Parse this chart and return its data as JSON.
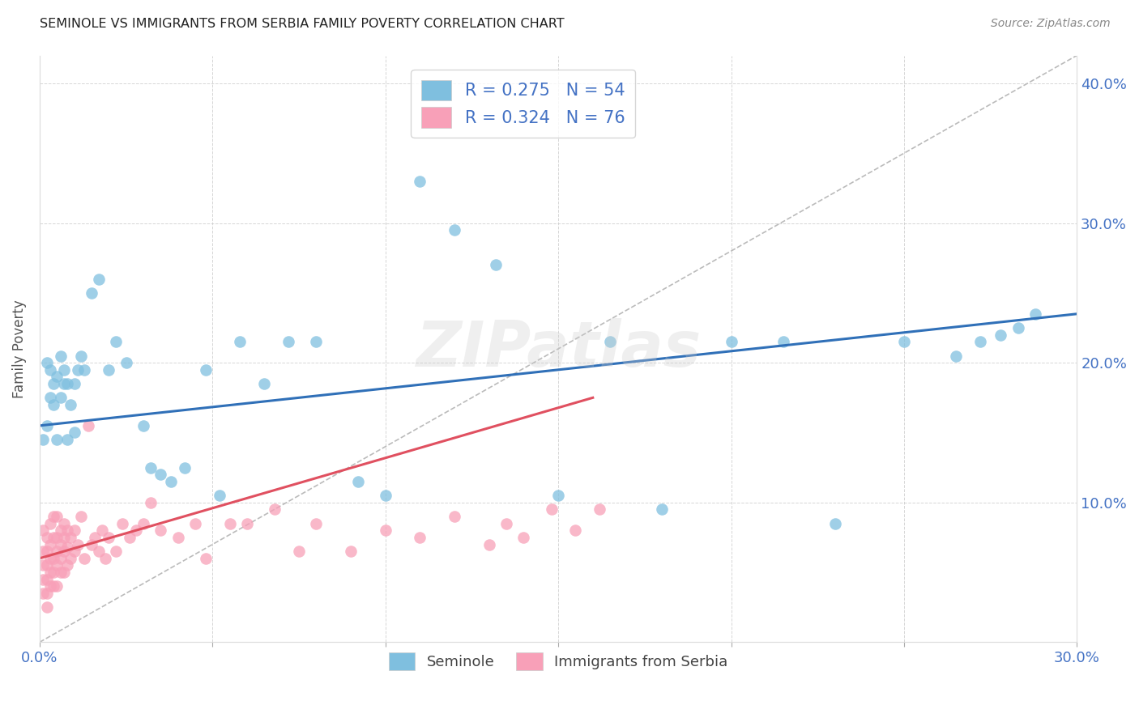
{
  "title": "SEMINOLE VS IMMIGRANTS FROM SERBIA FAMILY POVERTY CORRELATION CHART",
  "source": "Source: ZipAtlas.com",
  "ylabel": "Family Poverty",
  "xlim": [
    0.0,
    0.3
  ],
  "ylim": [
    0.0,
    0.42
  ],
  "xtick_positions": [
    0.0,
    0.05,
    0.1,
    0.15,
    0.2,
    0.25,
    0.3
  ],
  "xtick_labels": [
    "0.0%",
    "",
    "",
    "",
    "",
    "",
    "30.0%"
  ],
  "ytick_positions": [
    0.0,
    0.1,
    0.2,
    0.3,
    0.4
  ],
  "ytick_labels_right": [
    "",
    "10.0%",
    "20.0%",
    "30.0%",
    "40.0%"
  ],
  "background_color": "#ffffff",
  "grid_color": "#cccccc",
  "watermark": "ZIPatlas",
  "seminole_color": "#7fbfdf",
  "serbia_color": "#f8a0b8",
  "seminole_line_color": "#3070b8",
  "serbia_line_color": "#e05060",
  "diagonal_color": "#bbbbbb",
  "tick_label_color": "#4472c4",
  "legend_R_seminole": "R = 0.275",
  "legend_N_seminole": "N = 54",
  "legend_R_serbia": "R = 0.324",
  "legend_N_serbia": "N = 76",
  "sem_x": [
    0.001,
    0.002,
    0.002,
    0.003,
    0.003,
    0.004,
    0.004,
    0.005,
    0.005,
    0.006,
    0.006,
    0.007,
    0.007,
    0.008,
    0.008,
    0.009,
    0.01,
    0.01,
    0.011,
    0.012,
    0.013,
    0.015,
    0.017,
    0.02,
    0.022,
    0.025,
    0.03,
    0.032,
    0.035,
    0.038,
    0.042,
    0.048,
    0.052,
    0.058,
    0.065,
    0.072,
    0.08,
    0.092,
    0.1,
    0.11,
    0.12,
    0.132,
    0.15,
    0.165,
    0.18,
    0.2,
    0.215,
    0.23,
    0.25,
    0.265,
    0.272,
    0.278,
    0.283,
    0.288
  ],
  "sem_y": [
    0.145,
    0.155,
    0.2,
    0.175,
    0.195,
    0.185,
    0.17,
    0.19,
    0.145,
    0.175,
    0.205,
    0.185,
    0.195,
    0.185,
    0.145,
    0.17,
    0.185,
    0.15,
    0.195,
    0.205,
    0.195,
    0.25,
    0.26,
    0.195,
    0.215,
    0.2,
    0.155,
    0.125,
    0.12,
    0.115,
    0.125,
    0.195,
    0.105,
    0.215,
    0.185,
    0.215,
    0.215,
    0.115,
    0.105,
    0.33,
    0.295,
    0.27,
    0.105,
    0.215,
    0.095,
    0.215,
    0.215,
    0.085,
    0.215,
    0.205,
    0.215,
    0.22,
    0.225,
    0.235
  ],
  "ser_x": [
    0.001,
    0.001,
    0.001,
    0.001,
    0.001,
    0.002,
    0.002,
    0.002,
    0.002,
    0.002,
    0.002,
    0.003,
    0.003,
    0.003,
    0.003,
    0.003,
    0.004,
    0.004,
    0.004,
    0.004,
    0.004,
    0.005,
    0.005,
    0.005,
    0.005,
    0.005,
    0.006,
    0.006,
    0.006,
    0.006,
    0.007,
    0.007,
    0.007,
    0.007,
    0.008,
    0.008,
    0.008,
    0.009,
    0.009,
    0.01,
    0.01,
    0.011,
    0.012,
    0.013,
    0.014,
    0.015,
    0.016,
    0.017,
    0.018,
    0.019,
    0.02,
    0.022,
    0.024,
    0.026,
    0.028,
    0.03,
    0.032,
    0.035,
    0.04,
    0.045,
    0.048,
    0.055,
    0.06,
    0.068,
    0.075,
    0.08,
    0.09,
    0.1,
    0.11,
    0.12,
    0.13,
    0.135,
    0.14,
    0.148,
    0.155,
    0.162
  ],
  "ser_y": [
    0.08,
    0.065,
    0.055,
    0.045,
    0.035,
    0.075,
    0.065,
    0.055,
    0.045,
    0.035,
    0.025,
    0.085,
    0.07,
    0.06,
    0.05,
    0.04,
    0.09,
    0.075,
    0.06,
    0.05,
    0.04,
    0.09,
    0.075,
    0.065,
    0.055,
    0.04,
    0.08,
    0.07,
    0.06,
    0.05,
    0.085,
    0.075,
    0.065,
    0.05,
    0.08,
    0.068,
    0.055,
    0.075,
    0.06,
    0.08,
    0.065,
    0.07,
    0.09,
    0.06,
    0.155,
    0.07,
    0.075,
    0.065,
    0.08,
    0.06,
    0.075,
    0.065,
    0.085,
    0.075,
    0.08,
    0.085,
    0.1,
    0.08,
    0.075,
    0.085,
    0.06,
    0.085,
    0.085,
    0.095,
    0.065,
    0.085,
    0.065,
    0.08,
    0.075,
    0.09,
    0.07,
    0.085,
    0.075,
    0.095,
    0.08,
    0.095
  ],
  "sem_line_x": [
    0.0,
    0.3
  ],
  "sem_line_y": [
    0.155,
    0.235
  ],
  "ser_line_x": [
    0.0,
    0.16
  ],
  "ser_line_y": [
    0.06,
    0.175
  ]
}
